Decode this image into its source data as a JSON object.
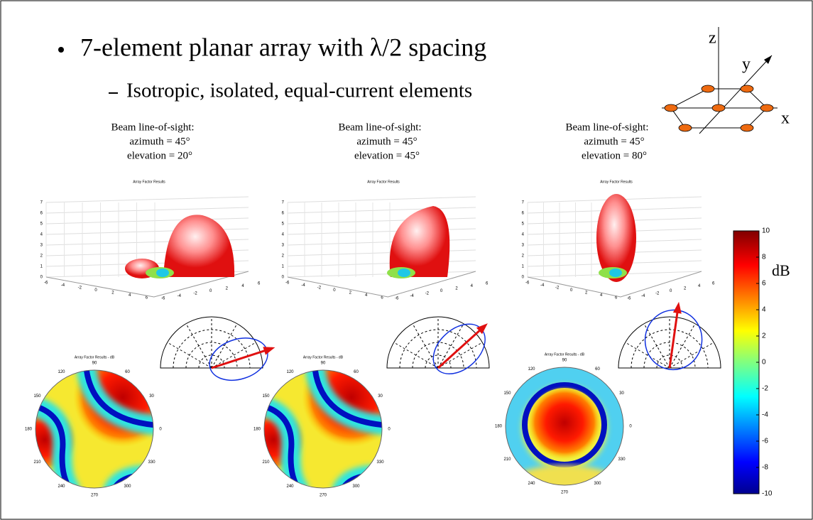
{
  "title": "7-element planar array with λ/2 spacing",
  "subtitle": "Isotropic, isolated, equal-current elements",
  "axes_diagram": {
    "z": "z",
    "y": "y",
    "x": "x"
  },
  "panels": [
    {
      "heading": "Beam line-of-sight:",
      "azimuth": "azimuth = 45°",
      "elevation": "elevation = 20°",
      "plot3d_title": "Array Factor Results",
      "polar_title": "Array Factor Results - dB"
    },
    {
      "heading": "Beam line-of-sight:",
      "azimuth": "azimuth = 45°",
      "elevation": "elevation = 45°",
      "plot3d_title": "Array Factor Results",
      "polar_title": "Array Factor Results - dB"
    },
    {
      "heading": "Beam line-of-sight:",
      "azimuth": "azimuth = 45°",
      "elevation": "elevation = 80°",
      "plot3d_title": "Array Factor Results",
      "polar_title": "Array Factor Results - dB"
    }
  ],
  "polar_angle_labels": [
    "0",
    "30",
    "60",
    "90",
    "120",
    "150",
    "180",
    "210",
    "240",
    "270",
    "300",
    "330"
  ],
  "plot3d_z_ticks": [
    0,
    1,
    2,
    3,
    4,
    5,
    6,
    7
  ],
  "plot3d_xy_ticks": [
    -6,
    -4,
    -2,
    0,
    2,
    4,
    6
  ],
  "colorbar": {
    "unit": "dB",
    "range": [
      -10,
      10
    ],
    "ticks": [
      10,
      8,
      6,
      4,
      2,
      0,
      -2,
      -4,
      -6,
      -8,
      -10
    ]
  }
}
